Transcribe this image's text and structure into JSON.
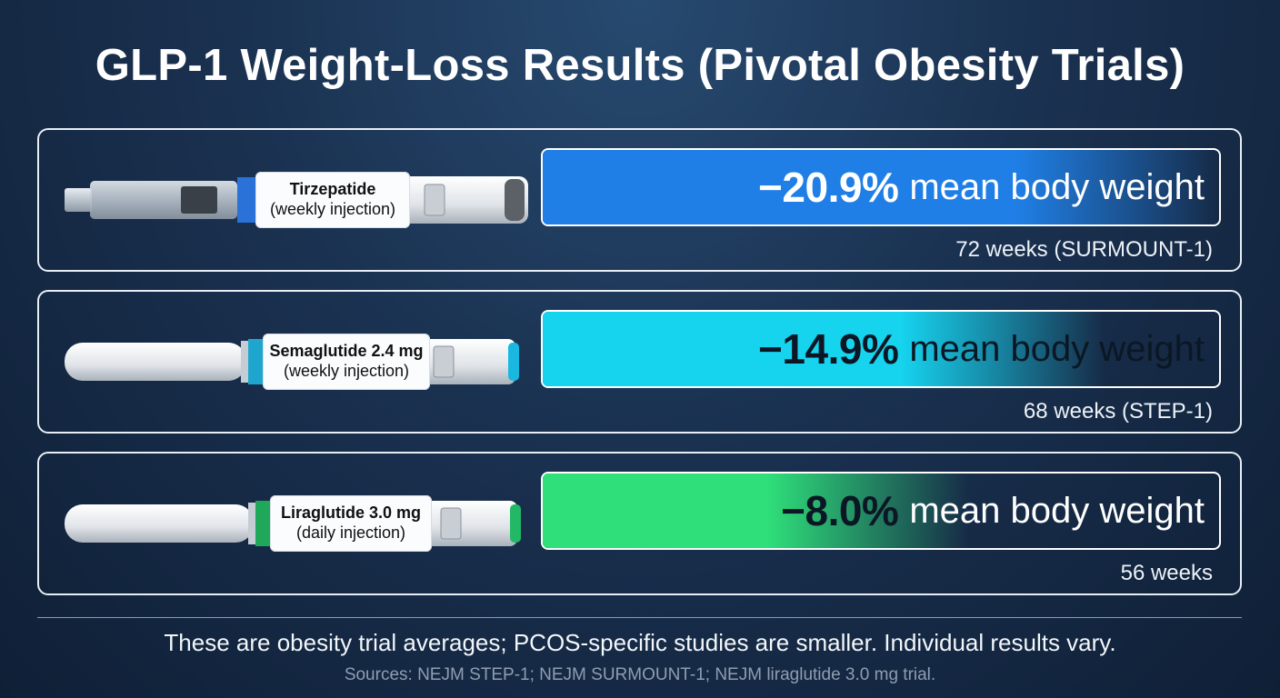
{
  "title": "GLP-1 Weight-Loss Results (Pivotal Obesity Trials)",
  "chart_data": {
    "type": "bar",
    "title": "GLP-1 Weight-Loss Results (Pivotal Obesity Trials)",
    "categories": [
      "Tirzepatide",
      "Semaglutide 2.4 mg",
      "Liraglutide 3.0 mg"
    ],
    "values": [
      -20.9,
      -14.9,
      -8.0
    ],
    "unit_label": "mean body weight",
    "series": [
      {
        "values": [
          -20.9,
          -14.9,
          -8.0
        ]
      }
    ]
  },
  "drugs": [
    {
      "name": "Tirzepatide",
      "route": "(weekly injection)",
      "value_text": "−20.9%",
      "value": -20.9,
      "metric": "mean body weight",
      "duration": "72 weeks (SURMOUNT-1)",
      "color": "#1f7fe6",
      "pen_icon": "autoinjector-pen-icon"
    },
    {
      "name": "Semaglutide 2.4 mg",
      "route": "(weekly injection)",
      "value_text": "−14.9%",
      "value": -14.9,
      "metric": "mean body weight",
      "duration": "68 weeks (STEP-1)",
      "color": "#16d3ee",
      "pen_icon": "injection-pen-icon"
    },
    {
      "name": "Liraglutide 3.0 mg",
      "route": "(daily injection)",
      "value_text": "−8.0%",
      "value": -8.0,
      "metric": "mean body weight",
      "duration": "56 weeks",
      "color": "#2fe07a",
      "pen_icon": "injection-pen-icon"
    }
  ],
  "footer": {
    "caveat": "These are obesity trial averages; PCOS-specific studies are smaller. Individual results vary.",
    "sources": "Sources: NEJM STEP-1; NEJM SURMOUNT-1; NEJM liraglutide 3.0 mg trial."
  }
}
